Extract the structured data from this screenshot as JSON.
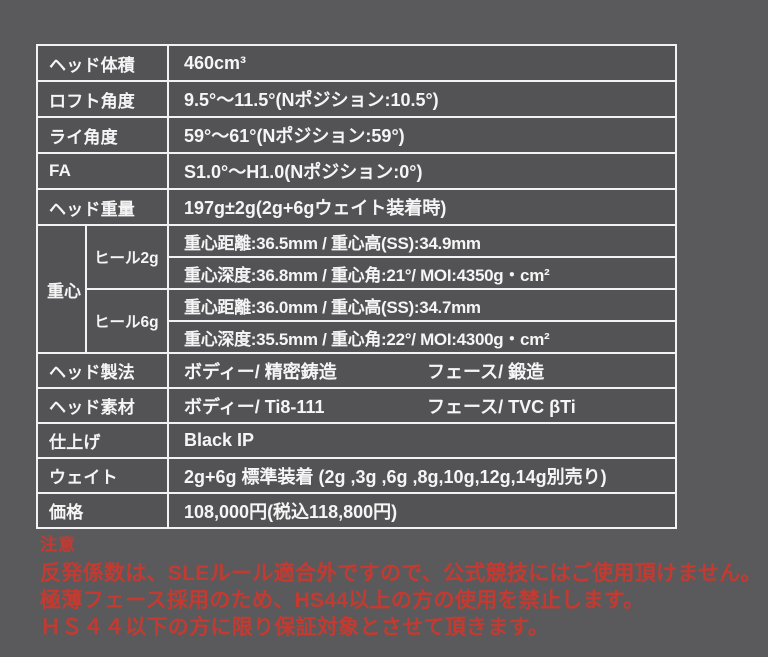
{
  "colors": {
    "page_background": "#5a5a5c",
    "cell_background": "#535355",
    "table_border": "#f2f2f2",
    "table_text": "#f5f5f5",
    "notice_text": "#c53a30"
  },
  "table": {
    "rows": [
      {
        "label": "ヘッド体積",
        "value": "460cm³"
      },
      {
        "label": "ロフト角度",
        "value": "9.5°〜11.5°(Nポジション:10.5°)"
      },
      {
        "label": "ライ角度",
        "value": "59°〜61°(Nポジション:59°)"
      },
      {
        "label": "FA",
        "value": "S1.0°〜H1.0(Nポジション:0°)"
      },
      {
        "label": "ヘッド重量",
        "value": "197g±2g(2g+6gウェイト装着時)"
      }
    ],
    "cog": {
      "label": "重心",
      "heel2g": {
        "label": "ヒール2g",
        "line1": "重心距離:36.5mm / 重心高(SS):34.9mm",
        "line2": "重心深度:36.8mm / 重心角:21°/ MOI:4350g・cm²"
      },
      "heel6g": {
        "label": "ヒール6g",
        "line1": "重心距離:36.0mm / 重心高(SS):34.7mm",
        "line2": "重心深度:35.5mm / 重心角:22°/ MOI:4300g・cm²"
      }
    },
    "rows2": [
      {
        "label": "ヘッド製法",
        "value1": "ボディー/ 精密鋳造",
        "value2": "フェース/ 鍛造"
      },
      {
        "label": "ヘッド素材",
        "value1": "ボディー/ Ti8-111",
        "value2": "フェース/ TVC βTi"
      },
      {
        "label": "仕上げ",
        "value": "Black IP"
      },
      {
        "label": "ウェイト",
        "value": "2g+6g 標準装着 (2g ,3g ,6g ,8g,10g,12g,14g別売り)"
      },
      {
        "label": "価格",
        "value": "108,000円(税込118,800円)"
      }
    ]
  },
  "notice": {
    "title": "注意",
    "lines": [
      "反発係数は、SLEルール適合外ですので、公式競技にはご使用頂けません。",
      "極薄フェース採用のため、HS44以上の方の使用を禁止します。",
      "ＨＳ４４以下の方に限り保証対象とさせて頂きます。"
    ]
  }
}
